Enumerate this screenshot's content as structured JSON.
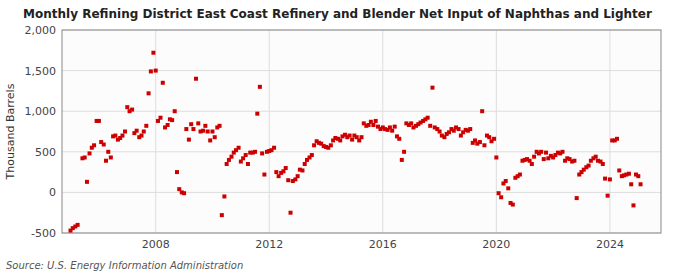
{
  "chart_data": {
    "type": "scatter",
    "title": "Monthly Refining District East Coast Refinery and Blender Net Input of Naphthas and Lighter",
    "y_label": "Thousand Barrels",
    "annotations": [
      "Source: U.S. Energy Information Administration"
    ],
    "color": "#cc0000",
    "marker": "square",
    "grid": true,
    "xlim": [
      2004.7,
      2025.8
    ],
    "ylim": [
      -500,
      2000
    ],
    "xticks": [
      2008,
      2012,
      2016,
      2020,
      2024
    ],
    "yticks": [
      -500,
      0,
      500,
      {
        "value": 1000,
        "label": "1,000"
      },
      {
        "value": 1500,
        "label": "1,500"
      },
      {
        "value": 2000,
        "label": "2,000"
      }
    ],
    "x": [
      2005.0,
      2005.08,
      2005.17,
      2005.25,
      2005.42,
      2005.5,
      2005.58,
      2005.67,
      2005.75,
      2005.83,
      2005.92,
      2006.0,
      2006.08,
      2006.17,
      2006.25,
      2006.33,
      2006.42,
      2006.5,
      2006.58,
      2006.67,
      2006.75,
      2006.83,
      2006.92,
      2007.0,
      2007.08,
      2007.17,
      2007.25,
      2007.33,
      2007.42,
      2007.5,
      2007.58,
      2007.67,
      2007.75,
      2007.83,
      2007.92,
      2008.0,
      2008.08,
      2008.17,
      2008.25,
      2008.33,
      2008.42,
      2008.5,
      2008.58,
      2008.67,
      2008.75,
      2008.83,
      2008.92,
      2009.0,
      2009.08,
      2009.17,
      2009.25,
      2009.33,
      2009.42,
      2009.5,
      2009.58,
      2009.67,
      2009.75,
      2009.83,
      2009.92,
      2010.0,
      2010.08,
      2010.17,
      2010.25,
      2010.33,
      2010.42,
      2010.5,
      2010.58,
      2010.67,
      2010.75,
      2010.83,
      2010.92,
      2011.0,
      2011.08,
      2011.17,
      2011.25,
      2011.33,
      2011.42,
      2011.5,
      2011.58,
      2011.67,
      2011.75,
      2011.83,
      2011.92,
      2012.0,
      2012.08,
      2012.17,
      2012.25,
      2012.33,
      2012.42,
      2012.5,
      2012.58,
      2012.67,
      2012.75,
      2012.83,
      2012.92,
      2013.0,
      2013.08,
      2013.17,
      2013.25,
      2013.33,
      2013.42,
      2013.5,
      2013.58,
      2013.67,
      2013.75,
      2013.83,
      2013.92,
      2014.0,
      2014.08,
      2014.17,
      2014.25,
      2014.33,
      2014.42,
      2014.5,
      2014.58,
      2014.67,
      2014.75,
      2014.83,
      2014.92,
      2015.0,
      2015.08,
      2015.17,
      2015.25,
      2015.33,
      2015.42,
      2015.5,
      2015.58,
      2015.67,
      2015.75,
      2015.83,
      2015.92,
      2016.0,
      2016.08,
      2016.17,
      2016.25,
      2016.33,
      2016.42,
      2016.5,
      2016.58,
      2016.67,
      2016.75,
      2016.83,
      2016.92,
      2017.0,
      2017.08,
      2017.17,
      2017.25,
      2017.33,
      2017.42,
      2017.5,
      2017.58,
      2017.67,
      2017.75,
      2017.83,
      2017.92,
      2018.0,
      2018.08,
      2018.17,
      2018.25,
      2018.33,
      2018.42,
      2018.5,
      2018.58,
      2018.67,
      2018.75,
      2018.83,
      2018.92,
      2019.0,
      2019.08,
      2019.17,
      2019.25,
      2019.33,
      2019.42,
      2019.5,
      2019.58,
      2019.67,
      2019.75,
      2019.83,
      2019.92,
      2020.0,
      2020.08,
      2020.17,
      2020.25,
      2020.33,
      2020.42,
      2020.5,
      2020.58,
      2020.67,
      2020.75,
      2020.83,
      2020.92,
      2021.0,
      2021.08,
      2021.17,
      2021.25,
      2021.33,
      2021.42,
      2021.5,
      2021.58,
      2021.67,
      2021.75,
      2021.83,
      2021.92,
      2022.0,
      2022.08,
      2022.17,
      2022.25,
      2022.33,
      2022.42,
      2022.5,
      2022.58,
      2022.67,
      2022.75,
      2022.83,
      2022.92,
      2023.0,
      2023.08,
      2023.17,
      2023.25,
      2023.33,
      2023.42,
      2023.5,
      2023.58,
      2023.67,
      2023.75,
      2023.83,
      2023.92,
      2024.0,
      2024.08,
      2024.17,
      2024.25,
      2024.33,
      2024.42,
      2024.5,
      2024.58,
      2024.67,
      2024.75,
      2024.83,
      2024.92,
      2025.0,
      2025.08
    ],
    "values": [
      -470,
      -440,
      -420,
      -400,
      420,
      430,
      130,
      480,
      550,
      580,
      880,
      880,
      620,
      590,
      390,
      500,
      430,
      690,
      700,
      650,
      670,
      700,
      750,
      1050,
      1000,
      1020,
      730,
      760,
      680,
      700,
      750,
      820,
      1220,
      1490,
      1720,
      1500,
      880,
      920,
      1350,
      800,
      830,
      900,
      890,
      1000,
      250,
      40,
      0,
      -10,
      780,
      650,
      840,
      780,
      1400,
      850,
      750,
      760,
      820,
      750,
      640,
      750,
      680,
      800,
      820,
      -280,
      -50,
      350,
      400,
      440,
      490,
      520,
      550,
      380,
      420,
      460,
      350,
      490,
      490,
      500,
      970,
      1300,
      480,
      220,
      500,
      510,
      520,
      550,
      250,
      200,
      240,
      260,
      300,
      150,
      -250,
      140,
      160,
      200,
      280,
      270,
      350,
      400,
      430,
      460,
      580,
      630,
      610,
      600,
      570,
      560,
      550,
      580,
      640,
      670,
      660,
      640,
      690,
      710,
      680,
      700,
      650,
      700,
      680,
      640,
      680,
      850,
      820,
      830,
      870,
      830,
      880,
      810,
      780,
      800,
      780,
      770,
      800,
      760,
      810,
      690,
      660,
      400,
      500,
      850,
      830,
      850,
      800,
      820,
      840,
      860,
      880,
      900,
      920,
      820,
      1290,
      800,
      780,
      750,
      700,
      680,
      720,
      740,
      780,
      760,
      800,
      780,
      700,
      740,
      770,
      760,
      780,
      610,
      640,
      600,
      620,
      1000,
      580,
      700,
      680,
      630,
      660,
      430,
      -10,
      -60,
      110,
      140,
      50,
      -130,
      -150,
      180,
      200,
      220,
      390,
      400,
      410,
      390,
      350,
      440,
      500,
      480,
      500,
      410,
      490,
      420,
      450,
      430,
      460,
      490,
      480,
      500,
      390,
      420,
      410,
      380,
      390,
      -70,
      220,
      250,
      280,
      310,
      330,
      390,
      420,
      440,
      390,
      380,
      350,
      170,
      -40,
      160,
      640,
      640,
      660,
      270,
      200,
      210,
      220,
      230,
      100,
      -160,
      220,
      200,
      100
    ]
  }
}
